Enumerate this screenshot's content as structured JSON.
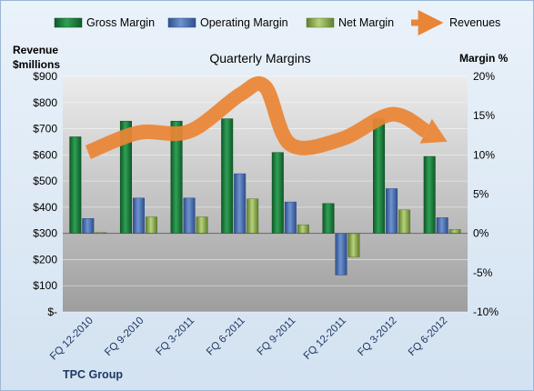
{
  "chart_data": {
    "type": "bar",
    "title": "Quarterly Margins",
    "left_axis_label_line1": "Revenue",
    "left_axis_label_line2": "$millions",
    "right_axis_label": "Margin %",
    "footer_label": "TPC Group",
    "categories": [
      "FQ 12-2010",
      "FQ 9-2010",
      "FQ 3-2011",
      "FQ 6-2011",
      "FQ 9-2011",
      "FQ 12-2011",
      "FQ 3-2012",
      "FQ 6-2012"
    ],
    "left_axis": {
      "ylim": [
        0,
        900
      ],
      "ticks": [
        0,
        100,
        200,
        300,
        400,
        500,
        600,
        700,
        800,
        900
      ],
      "tick_labels": [
        "$-",
        "$100",
        "$200",
        "$300",
        "$400",
        "$500",
        "$600",
        "$700",
        "$800",
        "$900"
      ]
    },
    "right_axis": {
      "ylim": [
        -10,
        20
      ],
      "ticks": [
        -10,
        -5,
        0,
        5,
        10,
        15,
        20
      ],
      "tick_labels": [
        "-10%",
        "-5%",
        "0%",
        "5%",
        "10%",
        "15%",
        "20%"
      ]
    },
    "grid": true,
    "legend_position": "top",
    "series": [
      {
        "name": "Gross Margin",
        "axis": "right",
        "color": "#1e7a3c",
        "values": [
          12.3,
          14.3,
          14.3,
          14.6,
          10.3,
          3.8,
          14.6,
          9.8
        ]
      },
      {
        "name": "Operating Margin",
        "axis": "right",
        "color": "#4a6fb0",
        "values": [
          1.9,
          4.5,
          4.5,
          7.6,
          4.0,
          -5.3,
          5.7,
          2.0
        ]
      },
      {
        "name": "Net Margin",
        "axis": "right",
        "color": "#8fae55",
        "values": [
          0.1,
          2.1,
          2.1,
          4.4,
          1.1,
          -3.0,
          3.0,
          0.5
        ]
      },
      {
        "name": "Revenues",
        "axis": "left",
        "type": "line",
        "color": "#e98536",
        "values": [
          610,
          685,
          690,
          830,
          640,
          660,
          755,
          660
        ]
      }
    ],
    "revenue_curve_bumps": [
      {
        "between": [
          3,
          4
        ],
        "peak": 860
      }
    ]
  }
}
